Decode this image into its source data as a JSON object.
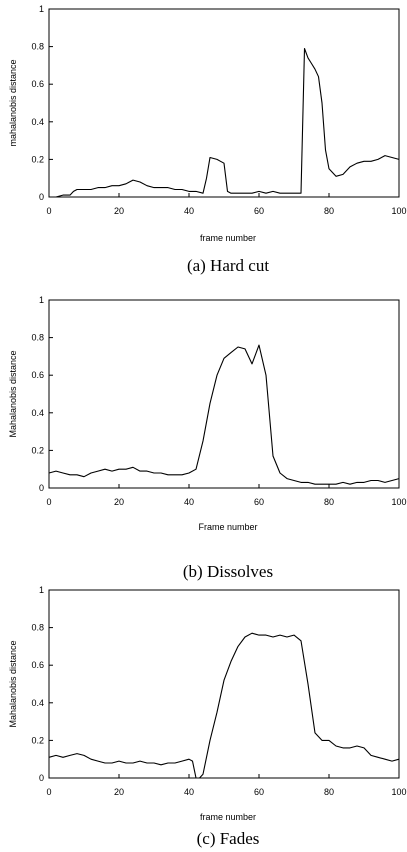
{
  "chart_data": [
    {
      "type": "line",
      "caption": "(a) Hard cut",
      "xlabel": "frame number",
      "ylabel": "mahalanobis distance",
      "xlim": [
        0,
        100
      ],
      "ylim": [
        0,
        1
      ],
      "x_ticks": [
        0,
        20,
        40,
        60,
        80,
        100
      ],
      "y_ticks": [
        0,
        0.2,
        0.4,
        0.6,
        0.8,
        1
      ],
      "grid": false,
      "series": [
        {
          "x": [
            2,
            4,
            6,
            7,
            8,
            10,
            12,
            14,
            16,
            18,
            20,
            22,
            24,
            26,
            28,
            30,
            32,
            34,
            36,
            38,
            40,
            42,
            44,
            45,
            46,
            48,
            49,
            50,
            51,
            52,
            54,
            56,
            58,
            60,
            62,
            64,
            66,
            68,
            70,
            72,
            73,
            74,
            75,
            76,
            77,
            78,
            79,
            80,
            82,
            84,
            86,
            88,
            90,
            92,
            94,
            96,
            98,
            100
          ],
          "y": [
            0.0,
            0.01,
            0.01,
            0.03,
            0.04,
            0.04,
            0.04,
            0.05,
            0.05,
            0.06,
            0.06,
            0.07,
            0.09,
            0.08,
            0.06,
            0.05,
            0.05,
            0.05,
            0.04,
            0.04,
            0.03,
            0.03,
            0.02,
            0.1,
            0.21,
            0.2,
            0.19,
            0.18,
            0.03,
            0.02,
            0.02,
            0.02,
            0.02,
            0.03,
            0.02,
            0.03,
            0.02,
            0.02,
            0.02,
            0.02,
            0.79,
            0.74,
            0.71,
            0.68,
            0.64,
            0.5,
            0.25,
            0.15,
            0.11,
            0.12,
            0.16,
            0.18,
            0.19,
            0.19,
            0.2,
            0.22,
            0.21,
            0.2
          ]
        }
      ]
    },
    {
      "type": "line",
      "caption": "(b) Dissolves",
      "xlabel": "Frame number",
      "ylabel": "Mahalanobis distance",
      "xlim": [
        0,
        100
      ],
      "ylim": [
        0,
        1
      ],
      "x_ticks": [
        0,
        20,
        40,
        60,
        80,
        100
      ],
      "y_ticks": [
        0,
        0.2,
        0.4,
        0.6,
        0.8,
        1
      ],
      "grid": false,
      "series": [
        {
          "x": [
            0,
            2,
            4,
            6,
            8,
            10,
            12,
            14,
            16,
            18,
            20,
            22,
            24,
            26,
            28,
            30,
            32,
            34,
            36,
            38,
            40,
            42,
            44,
            46,
            48,
            50,
            52,
            54,
            56,
            58,
            60,
            62,
            64,
            66,
            68,
            70,
            72,
            74,
            76,
            78,
            80,
            82,
            84,
            86,
            88,
            90,
            92,
            94,
            96,
            98,
            100
          ],
          "y": [
            0.08,
            0.09,
            0.08,
            0.07,
            0.07,
            0.06,
            0.08,
            0.09,
            0.1,
            0.09,
            0.1,
            0.1,
            0.11,
            0.09,
            0.09,
            0.08,
            0.08,
            0.07,
            0.07,
            0.07,
            0.08,
            0.1,
            0.25,
            0.45,
            0.6,
            0.69,
            0.72,
            0.75,
            0.74,
            0.66,
            0.76,
            0.6,
            0.17,
            0.08,
            0.05,
            0.04,
            0.03,
            0.03,
            0.02,
            0.02,
            0.02,
            0.02,
            0.03,
            0.02,
            0.03,
            0.03,
            0.04,
            0.04,
            0.03,
            0.04,
            0.05
          ]
        }
      ]
    },
    {
      "type": "line",
      "caption": "(c) Fades",
      "xlabel": "frame number",
      "ylabel": "Mahalanobis distance",
      "xlim": [
        0,
        100
      ],
      "ylim": [
        0,
        1
      ],
      "x_ticks": [
        0,
        20,
        40,
        60,
        80,
        100
      ],
      "y_ticks": [
        0,
        0.2,
        0.4,
        0.6,
        0.8,
        1
      ],
      "grid": false,
      "series": [
        {
          "x": [
            0,
            2,
            4,
            6,
            8,
            10,
            12,
            14,
            16,
            18,
            20,
            22,
            24,
            26,
            28,
            30,
            32,
            34,
            36,
            38,
            40,
            41,
            42,
            43,
            44,
            46,
            48,
            50,
            52,
            54,
            56,
            58,
            60,
            62,
            64,
            66,
            68,
            70,
            72,
            74,
            76,
            78,
            80,
            82,
            84,
            86,
            88,
            90,
            92,
            94,
            96,
            98,
            100
          ],
          "y": [
            0.11,
            0.12,
            0.11,
            0.12,
            0.13,
            0.12,
            0.1,
            0.09,
            0.08,
            0.08,
            0.09,
            0.08,
            0.08,
            0.09,
            0.08,
            0.08,
            0.07,
            0.08,
            0.08,
            0.09,
            0.1,
            0.09,
            0.0,
            0.0,
            0.02,
            0.2,
            0.35,
            0.52,
            0.62,
            0.7,
            0.75,
            0.77,
            0.76,
            0.76,
            0.75,
            0.76,
            0.75,
            0.76,
            0.73,
            0.5,
            0.24,
            0.2,
            0.2,
            0.17,
            0.16,
            0.16,
            0.17,
            0.16,
            0.12,
            0.11,
            0.1,
            0.09,
            0.1
          ]
        }
      ]
    }
  ]
}
